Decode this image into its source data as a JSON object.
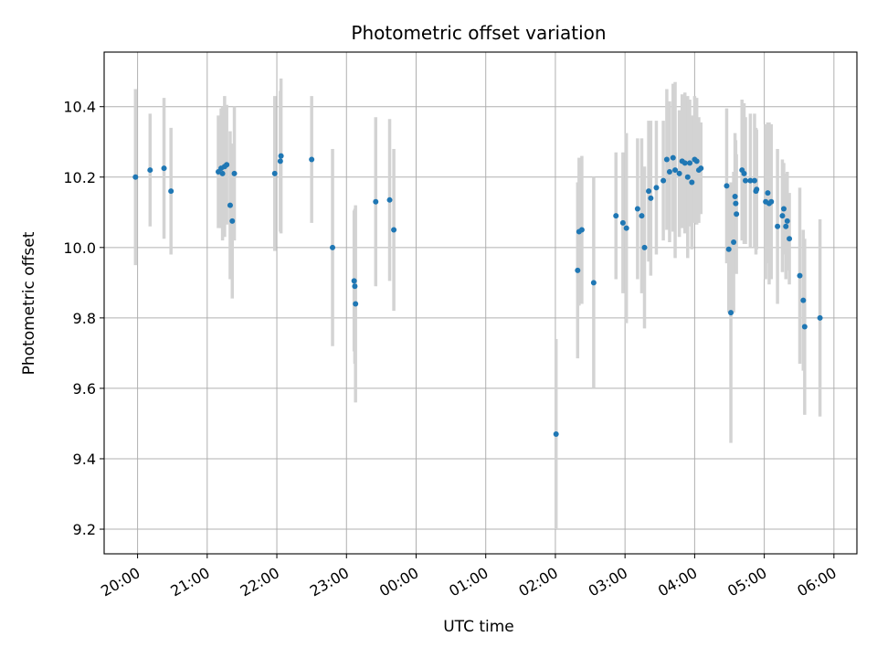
{
  "chart_data": {
    "type": "scatter",
    "title": "Photometric offset variation",
    "xlabel": "UTC time",
    "ylabel": "Photometric offset",
    "x_unit": "hours after 19:00 UTC (continuing past midnight)",
    "x_tick_values": [
      1,
      2,
      3,
      4,
      5,
      6,
      7,
      8,
      9,
      10,
      11
    ],
    "x_tick_labels": [
      "20:00",
      "21:00",
      "22:00",
      "23:00",
      "00:00",
      "01:00",
      "02:00",
      "03:00",
      "04:00",
      "05:00",
      "06:00"
    ],
    "y_tick_values": [
      9.2,
      9.4,
      9.6,
      9.8,
      10.0,
      10.2,
      10.4
    ],
    "y_tick_labels": [
      "9.2",
      "9.4",
      "9.6",
      "9.8",
      "10.0",
      "10.2",
      "10.4"
    ],
    "xlim": [
      0.52,
      11.33
    ],
    "ylim": [
      9.13,
      10.555
    ],
    "grid": true,
    "colors": {
      "points": "#1f77b4",
      "errorbars": "#d3d3d3",
      "grid": "#b0b0b0",
      "axes": "#000000"
    },
    "points": [
      {
        "x": 0.97,
        "y": 10.2,
        "err": 0.25
      },
      {
        "x": 1.18,
        "y": 10.22,
        "err": 0.16
      },
      {
        "x": 1.38,
        "y": 10.225,
        "err": 0.2
      },
      {
        "x": 1.48,
        "y": 10.16,
        "err": 0.18
      },
      {
        "x": 2.16,
        "y": 10.215,
        "err": 0.16
      },
      {
        "x": 2.2,
        "y": 10.225,
        "err": 0.17
      },
      {
        "x": 2.22,
        "y": 10.21,
        "err": 0.19
      },
      {
        "x": 2.25,
        "y": 10.23,
        "err": 0.2
      },
      {
        "x": 2.28,
        "y": 10.235,
        "err": 0.17
      },
      {
        "x": 2.33,
        "y": 10.12,
        "err": 0.21
      },
      {
        "x": 2.36,
        "y": 10.075,
        "err": 0.22
      },
      {
        "x": 2.39,
        "y": 10.21,
        "err": 0.19
      },
      {
        "x": 2.97,
        "y": 10.21,
        "err": 0.22
      },
      {
        "x": 3.05,
        "y": 10.245,
        "err": 0.2
      },
      {
        "x": 3.06,
        "y": 10.26,
        "err": 0.22
      },
      {
        "x": 3.5,
        "y": 10.25,
        "err": 0.18
      },
      {
        "x": 3.8,
        "y": 10.0,
        "err": 0.28
      },
      {
        "x": 4.11,
        "y": 9.905,
        "err": 0.2
      },
      {
        "x": 4.12,
        "y": 9.89,
        "err": 0.22
      },
      {
        "x": 4.13,
        "y": 9.84,
        "err": 0.28
      },
      {
        "x": 4.42,
        "y": 10.13,
        "err": 0.24
      },
      {
        "x": 4.62,
        "y": 10.135,
        "err": 0.23
      },
      {
        "x": 4.68,
        "y": 10.05,
        "err": 0.23
      },
      {
        "x": 7.01,
        "y": 9.47,
        "err": 0.27
      },
      {
        "x": 7.32,
        "y": 9.935,
        "err": 0.25
      },
      {
        "x": 7.34,
        "y": 10.045,
        "err": 0.21
      },
      {
        "x": 7.38,
        "y": 10.05,
        "err": 0.21
      },
      {
        "x": 7.55,
        "y": 9.9,
        "err": 0.3
      },
      {
        "x": 7.87,
        "y": 10.09,
        "err": 0.18
      },
      {
        "x": 7.97,
        "y": 10.07,
        "err": 0.2
      },
      {
        "x": 8.02,
        "y": 10.055,
        "err": 0.27
      },
      {
        "x": 8.18,
        "y": 10.11,
        "err": 0.2
      },
      {
        "x": 8.24,
        "y": 10.09,
        "err": 0.22
      },
      {
        "x": 8.28,
        "y": 10.0,
        "err": 0.23
      },
      {
        "x": 8.34,
        "y": 10.16,
        "err": 0.2
      },
      {
        "x": 8.37,
        "y": 10.14,
        "err": 0.22
      },
      {
        "x": 8.45,
        "y": 10.17,
        "err": 0.19
      },
      {
        "x": 8.55,
        "y": 10.19,
        "err": 0.17
      },
      {
        "x": 8.6,
        "y": 10.25,
        "err": 0.2
      },
      {
        "x": 8.64,
        "y": 10.215,
        "err": 0.2
      },
      {
        "x": 8.69,
        "y": 10.255,
        "err": 0.21
      },
      {
        "x": 8.72,
        "y": 10.22,
        "err": 0.25
      },
      {
        "x": 8.78,
        "y": 10.21,
        "err": 0.18
      },
      {
        "x": 8.82,
        "y": 10.245,
        "err": 0.19
      },
      {
        "x": 8.86,
        "y": 10.24,
        "err": 0.2
      },
      {
        "x": 8.9,
        "y": 10.2,
        "err": 0.23
      },
      {
        "x": 8.93,
        "y": 10.24,
        "err": 0.18
      },
      {
        "x": 8.96,
        "y": 10.185,
        "err": 0.19
      },
      {
        "x": 9.0,
        "y": 10.25,
        "err": 0.18
      },
      {
        "x": 9.03,
        "y": 10.245,
        "err": 0.18
      },
      {
        "x": 9.06,
        "y": 10.22,
        "err": 0.15
      },
      {
        "x": 9.09,
        "y": 10.225,
        "err": 0.13
      },
      {
        "x": 9.46,
        "y": 10.175,
        "err": 0.22
      },
      {
        "x": 9.49,
        "y": 9.995,
        "err": 0.18
      },
      {
        "x": 9.52,
        "y": 9.815,
        "err": 0.37
      },
      {
        "x": 9.56,
        "y": 10.015,
        "err": 0.2
      },
      {
        "x": 9.58,
        "y": 10.145,
        "err": 0.18
      },
      {
        "x": 9.59,
        "y": 10.125,
        "err": 0.18
      },
      {
        "x": 9.6,
        "y": 10.095,
        "err": 0.17
      },
      {
        "x": 9.68,
        "y": 10.22,
        "err": 0.2
      },
      {
        "x": 9.71,
        "y": 10.21,
        "err": 0.2
      },
      {
        "x": 9.73,
        "y": 10.19,
        "err": 0.18
      },
      {
        "x": 9.8,
        "y": 10.19,
        "err": 0.19
      },
      {
        "x": 9.86,
        "y": 10.19,
        "err": 0.19
      },
      {
        "x": 9.88,
        "y": 10.16,
        "err": 0.18
      },
      {
        "x": 9.89,
        "y": 10.165,
        "err": 0.17
      },
      {
        "x": 10.02,
        "y": 10.13,
        "err": 0.22
      },
      {
        "x": 10.05,
        "y": 10.155,
        "err": 0.2
      },
      {
        "x": 10.07,
        "y": 10.125,
        "err": 0.23
      },
      {
        "x": 10.1,
        "y": 10.13,
        "err": 0.22
      },
      {
        "x": 10.19,
        "y": 10.06,
        "err": 0.22
      },
      {
        "x": 10.26,
        "y": 10.09,
        "err": 0.16
      },
      {
        "x": 10.28,
        "y": 10.11,
        "err": 0.13
      },
      {
        "x": 10.31,
        "y": 10.06,
        "err": 0.15
      },
      {
        "x": 10.33,
        "y": 10.075,
        "err": 0.14
      },
      {
        "x": 10.36,
        "y": 10.025,
        "err": 0.13
      },
      {
        "x": 10.51,
        "y": 9.92,
        "err": 0.25
      },
      {
        "x": 10.56,
        "y": 9.85,
        "err": 0.2
      },
      {
        "x": 10.58,
        "y": 9.775,
        "err": 0.25
      },
      {
        "x": 10.8,
        "y": 9.8,
        "err": 0.28
      }
    ]
  }
}
